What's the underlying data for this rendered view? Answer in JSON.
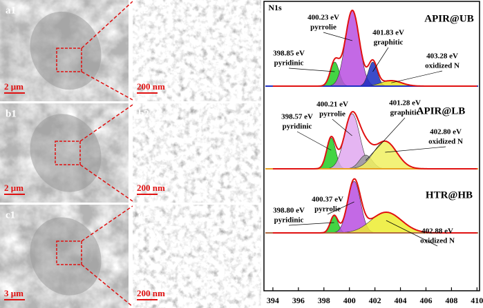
{
  "panels": [
    {
      "label": "a1",
      "scale": "2 μm"
    },
    {
      "label": "a2",
      "scale": "200 nm"
    },
    {
      "label": "b1",
      "scale": "2 μm"
    },
    {
      "label": "b2",
      "scale": "200 nm"
    },
    {
      "label": "c1",
      "scale": "3 μm"
    },
    {
      "label": "c2",
      "scale": "200 nm"
    }
  ],
  "chart_data": {
    "type": "line",
    "title": "N1s",
    "xlim": [
      393.3,
      410.2
    ],
    "xticks": [
      394,
      396,
      398,
      400,
      402,
      404,
      406,
      408,
      410
    ],
    "spectra": [
      {
        "name": "APIR@UB",
        "baseline_color": "#1f2fc4",
        "peaks": [
          {
            "center": {
              "value": 398.85,
              "label": "398.85 eV"
            },
            "species": "pyridinic",
            "height": 35,
            "sigma": 0.35,
            "color": "#22cc22"
          },
          {
            "center": {
              "value": 400.23,
              "label": "400.23 eV"
            },
            "species": "pyrrolie",
            "height": 110,
            "sigma": 0.55,
            "color": "#b84fe0"
          },
          {
            "center": {
              "value": 401.83,
              "label": "401.83 eV"
            },
            "species": "graphitic",
            "height": 35,
            "sigma": 0.35,
            "color": "#1a2dbf"
          },
          {
            "center": {
              "value": 403.28,
              "label": "403.28 eV"
            },
            "species": "oxidized N",
            "height": 8,
            "sigma": 0.8,
            "color": "#e8e020"
          }
        ]
      },
      {
        "name": "APIR@LB",
        "baseline_color": "#e8a020",
        "peaks": [
          {
            "center": {
              "value": 398.57,
              "label": "398.57 eV"
            },
            "species": "pyridinic",
            "height": 45,
            "sigma": 0.35,
            "color": "#22cc22"
          },
          {
            "center": {
              "value": 400.21,
              "label": "400.21 eV"
            },
            "species": "pyrrolie",
            "height": 80,
            "sigma": 0.6,
            "color": "#e0a8f0"
          },
          {
            "center": {
              "value": 401.28,
              "label": "401.28 eV"
            },
            "species": "graphitic",
            "height": 20,
            "sigma": 0.5,
            "color": "#9a9a9a"
          },
          {
            "center": {
              "value": 402.8,
              "label": "402.80 eV"
            },
            "species": "oxidized N",
            "height": 40,
            "sigma": 0.9,
            "color": "#f0f060"
          }
        ]
      },
      {
        "name": "HTR@HB",
        "baseline_color": "#b06a40",
        "peaks": [
          {
            "center": {
              "value": 398.8,
              "label": "398.80 eV"
            },
            "species": "pyridinic",
            "height": 25,
            "sigma": 0.3,
            "color": "#22cc22"
          },
          {
            "center": {
              "value": 400.37,
              "label": "400.37 eV"
            },
            "species": "pyrrolie",
            "height": 75,
            "sigma": 0.5,
            "color": "#b84fe0"
          },
          {
            "center": {
              "value": 402.88,
              "label": "402.88 eV"
            },
            "species": "oxidized N",
            "height": 30,
            "sigma": 1.2,
            "color": "#ecec30"
          }
        ]
      }
    ]
  }
}
